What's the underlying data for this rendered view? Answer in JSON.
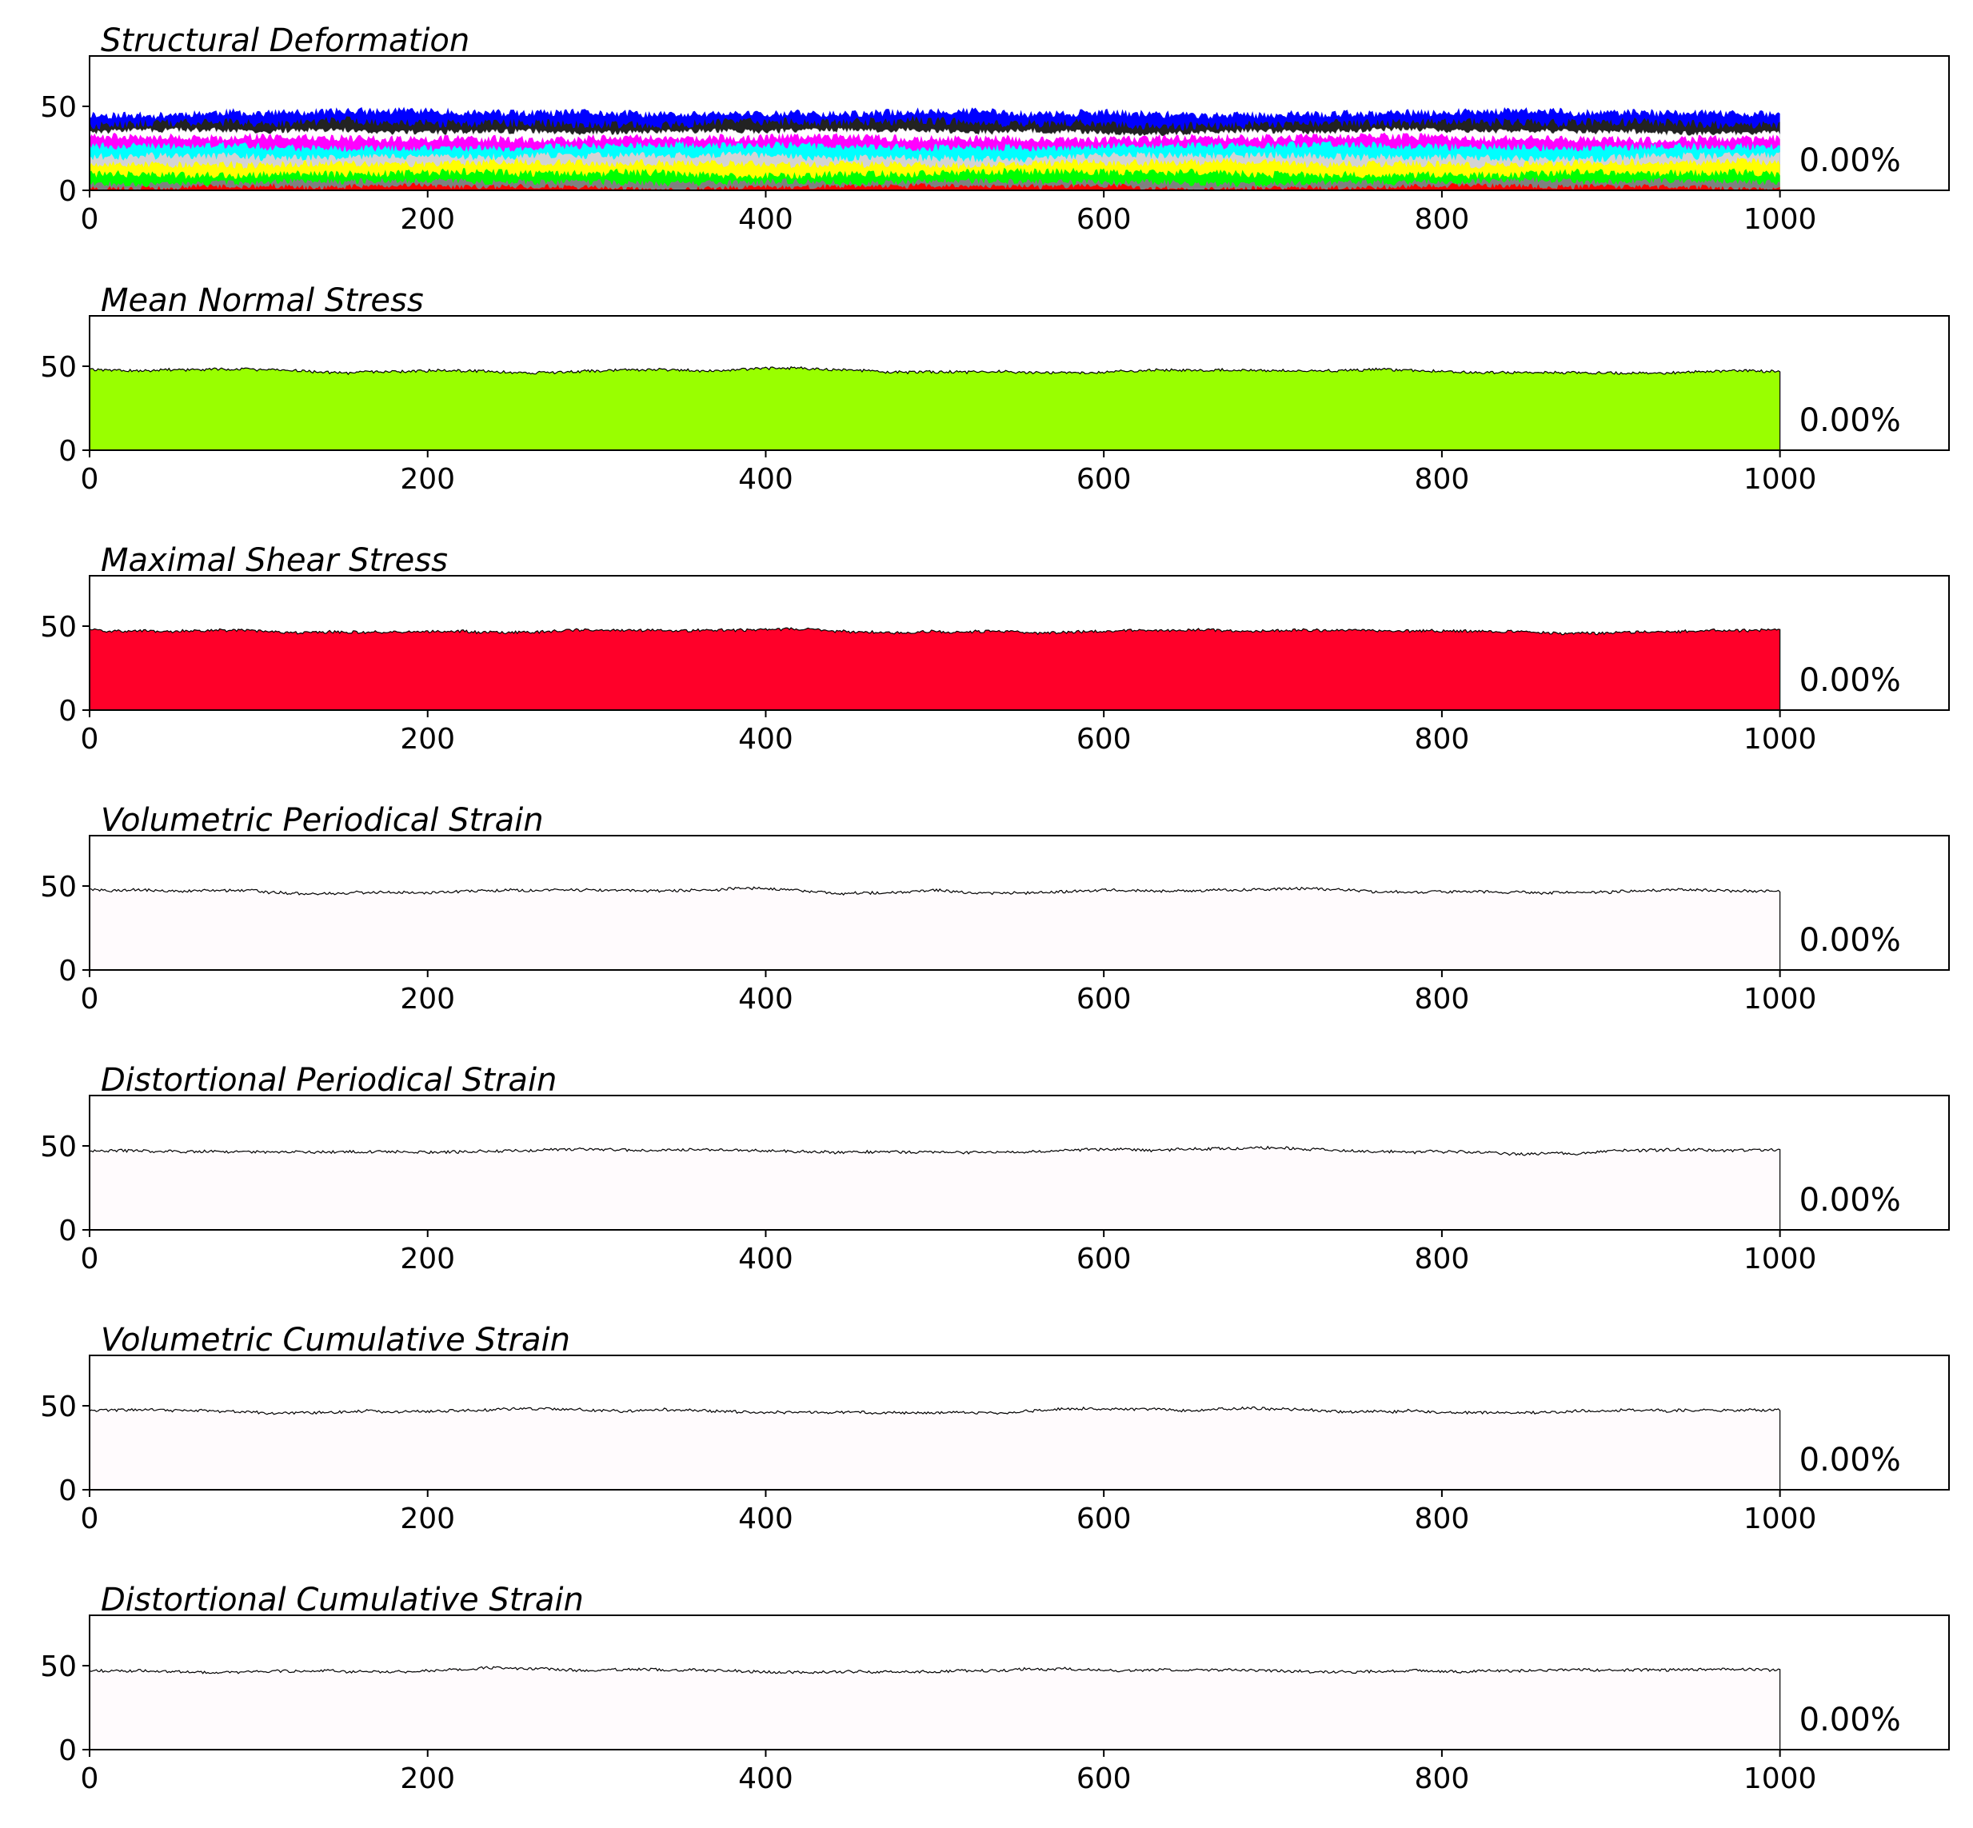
{
  "chart_data": [
    {
      "type": "area",
      "title": "Structural Deformation",
      "annotation": "0.00%",
      "x_data_end": 1000,
      "xlim": [
        0,
        1100
      ],
      "ylim": [
        0,
        80
      ],
      "x_ticks": [
        0,
        200,
        400,
        600,
        800,
        1000
      ],
      "y_ticks": [
        0,
        50
      ],
      "stacked": true,
      "series": [
        {
          "color": "#ff0000",
          "level": 2,
          "noise": 1.0
        },
        {
          "color": "#808080",
          "level": 5,
          "noise": 1.2
        },
        {
          "color": "#00ff00",
          "level": 10,
          "noise": 1.5
        },
        {
          "color": "#ffff00",
          "level": 16,
          "noise": 1.5
        },
        {
          "color": "#d3d3d3",
          "level": 20,
          "noise": 1.5
        },
        {
          "color": "#00ffff",
          "level": 26,
          "noise": 1.5
        },
        {
          "color": "#ff00ff",
          "level": 31,
          "noise": 1.5
        },
        {
          "color": "#ffffff",
          "level": 35,
          "noise": 1.0
        },
        {
          "color": "#222222",
          "level": 40,
          "noise": 1.8
        },
        {
          "color": "#0000ff",
          "level": 46,
          "noise": 1.5
        }
      ]
    },
    {
      "type": "area",
      "title": "Mean Normal Stress",
      "annotation": "0.00%",
      "x_data_end": 1000,
      "xlim": [
        0,
        1100
      ],
      "ylim": [
        0,
        80
      ],
      "x_ticks": [
        0,
        200,
        400,
        600,
        800,
        1000
      ],
      "y_ticks": [
        0,
        50
      ],
      "fill": "#99ff00",
      "level": 47
    },
    {
      "type": "area",
      "title": "Maximal Shear Stress",
      "annotation": "0.00%",
      "x_data_end": 1000,
      "xlim": [
        0,
        1100
      ],
      "ylim": [
        0,
        80
      ],
      "x_ticks": [
        0,
        200,
        400,
        600,
        800,
        1000
      ],
      "y_ticks": [
        0,
        50
      ],
      "fill": "#ff0029",
      "level": 47
    },
    {
      "type": "area",
      "title": "Volumetric Periodical Strain",
      "annotation": "0.00%",
      "x_data_end": 1000,
      "xlim": [
        0,
        1100
      ],
      "ylim": [
        0,
        80
      ],
      "x_ticks": [
        0,
        200,
        400,
        600,
        800,
        1000
      ],
      "y_ticks": [
        0,
        50
      ],
      "fill": "#fffbfd",
      "level": 47
    },
    {
      "type": "area",
      "title": "Distortional Periodical Strain",
      "annotation": "0.00%",
      "x_data_end": 1000,
      "xlim": [
        0,
        1100
      ],
      "ylim": [
        0,
        80
      ],
      "x_ticks": [
        0,
        200,
        400,
        600,
        800,
        1000
      ],
      "y_ticks": [
        0,
        50
      ],
      "fill": "#fffbfd",
      "level": 47
    },
    {
      "type": "area",
      "title": "Volumetric Cumulative Strain",
      "annotation": "0.00%",
      "x_data_end": 1000,
      "xlim": [
        0,
        1100
      ],
      "ylim": [
        0,
        80
      ],
      "x_ticks": [
        0,
        200,
        400,
        600,
        800,
        1000
      ],
      "y_ticks": [
        0,
        50
      ],
      "fill": "#fffbfd",
      "level": 47
    },
    {
      "type": "area",
      "title": "Distortional Cumulative Strain",
      "annotation": "0.00%",
      "x_data_end": 1000,
      "xlim": [
        0,
        1100
      ],
      "ylim": [
        0,
        80
      ],
      "x_ticks": [
        0,
        200,
        400,
        600,
        800,
        1000
      ],
      "y_ticks": [
        0,
        50
      ],
      "fill": "#fffbfd",
      "level": 47
    }
  ]
}
